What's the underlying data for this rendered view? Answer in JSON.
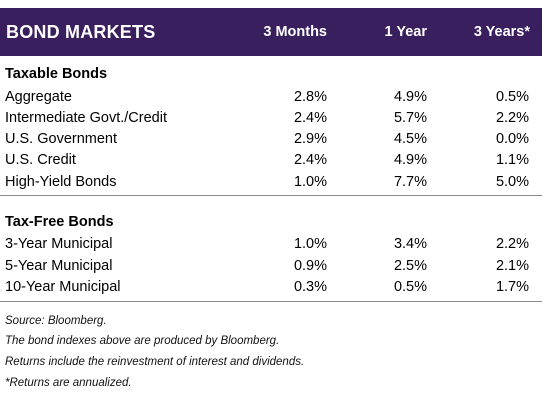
{
  "header": {
    "title": "BOND MARKETS",
    "col1": "3 Months",
    "col2": "1 Year",
    "col3": "3 Years*",
    "background": "#3a1f5e"
  },
  "taxable": {
    "title": "Taxable Bonds",
    "rows": [
      {
        "label": "Aggregate",
        "m3": "2.8%",
        "y1": "4.9%",
        "y3": "0.5%"
      },
      {
        "label": "Intermediate Govt./Credit",
        "m3": "2.4%",
        "y1": "5.7%",
        "y3": "2.2%"
      },
      {
        "label": "U.S. Government",
        "m3": "2.9%",
        "y1": "4.5%",
        "y3": "0.0%"
      },
      {
        "label": "U.S. Credit",
        "m3": "2.4%",
        "y1": "4.9%",
        "y3": "1.1%"
      },
      {
        "label": "High-Yield Bonds",
        "m3": "1.0%",
        "y1": "7.7%",
        "y3": "5.0%"
      }
    ]
  },
  "taxfree": {
    "title": "Tax-Free Bonds",
    "rows": [
      {
        "label": "3-Year Municipal",
        "m3": "1.0%",
        "y1": "3.4%",
        "y3": "2.2%"
      },
      {
        "label": "5-Year Municipal",
        "m3": "0.9%",
        "y1": "2.5%",
        "y3": "2.1%"
      },
      {
        "label": "10-Year Municipal",
        "m3": "0.3%",
        "y1": "0.5%",
        "y3": "1.7%"
      }
    ]
  },
  "notes": {
    "source": "Source: Bloomberg.",
    "indexes": "The bond indexes above are produced by Bloomberg.",
    "returns": "Returns include the reinvestment of interest and dividends.",
    "annualized": "*Returns are annualized."
  }
}
